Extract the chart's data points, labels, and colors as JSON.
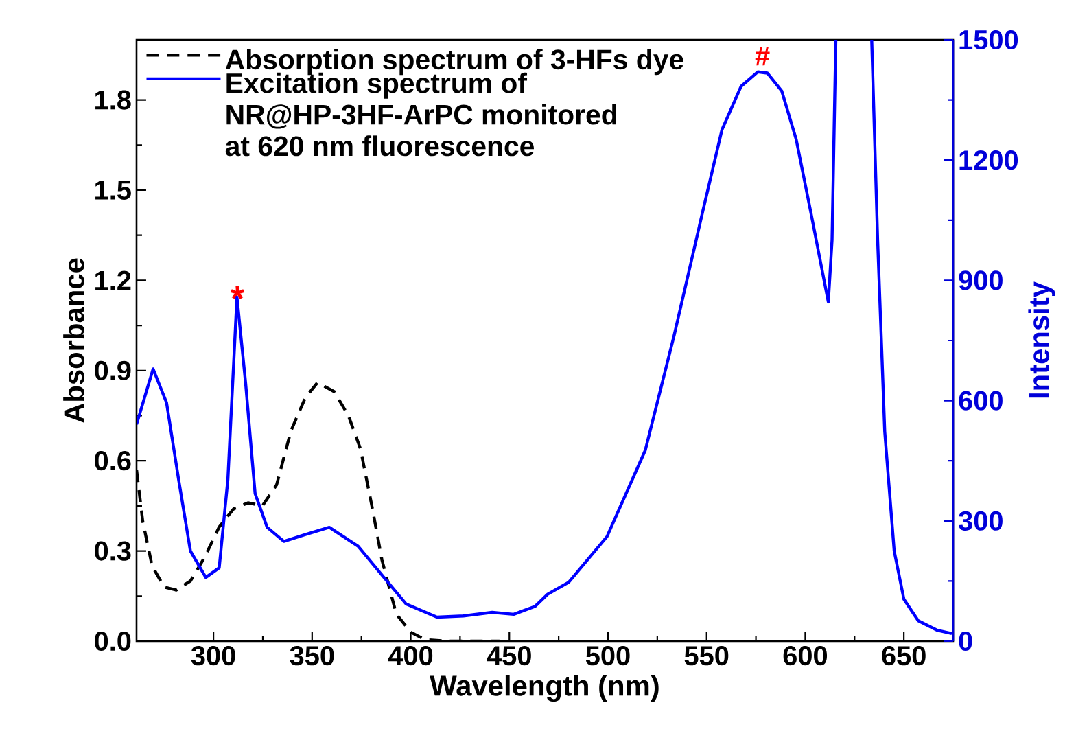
{
  "chart_data": {
    "type": "line",
    "xlabel": "Wavelength (nm)",
    "ylabel": "Absorbance",
    "y2label": "Intensity",
    "xlim": [
      261,
      675
    ],
    "xticks": [
      300,
      350,
      400,
      450,
      500,
      550,
      600,
      650
    ],
    "ylim": [
      0,
      2.0
    ],
    "yticks": [
      {
        "value": 0,
        "label": "0.0"
      },
      0.3,
      0.6,
      0.9,
      1.2,
      1.5,
      1.8
    ],
    "y2lim": [
      0,
      1500
    ],
    "y2ticks": [
      0,
      300,
      600,
      900,
      1200,
      1500
    ],
    "legend": "top left",
    "annotations": [
      "*",
      "#"
    ],
    "series": [
      {
        "name": "Absorption spectrum of 3-HFs dye",
        "color": "#000000",
        "line_style": "dashed",
        "axis": "y",
        "x": [
          261,
          264.1,
          268.9,
          275,
          281.1,
          288.3,
          295.6,
          302.9,
          310.2,
          317.5,
          324.8,
          332,
          339.3,
          346.6,
          352.7,
          361.2,
          368.4,
          374.5,
          380.6,
          385.4,
          392.7,
          400,
          407.3,
          419.4,
          445
        ],
        "values": [
          0.57,
          0.4,
          0.25,
          0.18,
          0.17,
          0.2,
          0.28,
          0.38,
          0.44,
          0.46,
          0.45,
          0.52,
          0.7,
          0.81,
          0.86,
          0.83,
          0.75,
          0.64,
          0.44,
          0.27,
          0.09,
          0.03,
          0.005,
          0,
          0
        ]
      },
      {
        "name": "Excitation spectrum of NR@HP-3HF-ArPC monitored at 620 nm fluorescence",
        "color": "#0000ff",
        "line_style": "solid",
        "axis": "y2",
        "x": [
          261,
          269.4,
          276.2,
          282.3,
          288.3,
          296.1,
          302.9,
          307.3,
          311.9,
          316.3,
          321.1,
          327.2,
          335.7,
          346.6,
          358.7,
          373.3,
          385.4,
          397.6,
          413.3,
          426.7,
          441.3,
          452.2,
          463.1,
          469.4,
          480.1,
          499.5,
          518.9,
          533.5,
          548.1,
          557.8,
          567.5,
          576,
          580.8,
          588.1,
          595.4,
          602.7,
          611.7,
          613.6,
          615.5,
          625,
          633.7,
          636.7,
          640.3,
          645.1,
          650,
          657.3,
          667,
          674.3
        ],
        "values": [
          541,
          679,
          595,
          404,
          225,
          159,
          183,
          404,
          858,
          643,
          368,
          284,
          249,
          266,
          284,
          237,
          165,
          93,
          60,
          63,
          72,
          67,
          87,
          117,
          147,
          261,
          476,
          762,
          1073,
          1276,
          1384,
          1420,
          1417,
          1372,
          1252,
          1073,
          846,
          1001,
          1500,
          null,
          1500,
          1001,
          523,
          225,
          105,
          51,
          27,
          19
        ]
      }
    ]
  }
}
